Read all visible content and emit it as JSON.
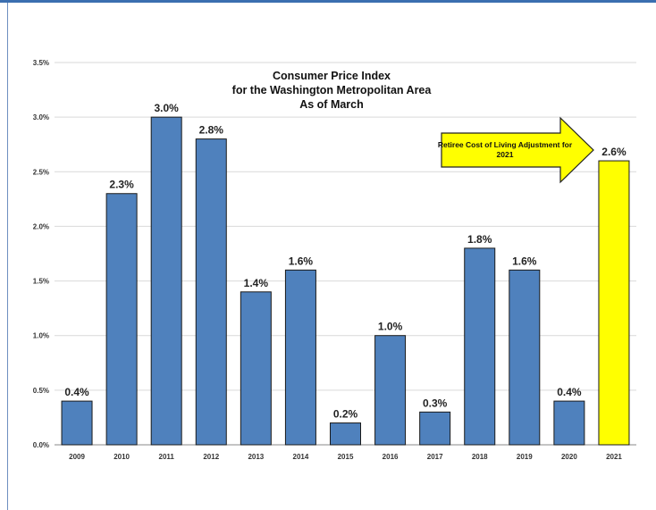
{
  "chart_data": {
    "type": "bar",
    "title_lines": [
      "Consumer Price Index",
      "for the Washington Metropolitan Area",
      "As of March"
    ],
    "categories": [
      "2009",
      "2010",
      "2011",
      "2012",
      "2013",
      "2014",
      "2015",
      "2016",
      "2017",
      "2018",
      "2019",
      "2020",
      "2021"
    ],
    "values": [
      0.4,
      2.3,
      3.0,
      2.8,
      1.4,
      1.6,
      0.2,
      1.0,
      0.3,
      1.8,
      1.6,
      0.4,
      2.6
    ],
    "value_labels": [
      "0.4%",
      "2.3%",
      "3.0%",
      "2.8%",
      "1.4%",
      "1.6%",
      "0.2%",
      "1.0%",
      "0.3%",
      "1.8%",
      "1.6%",
      "0.4%",
      "2.6%"
    ],
    "ylim": [
      0,
      3.5
    ],
    "yticks": [
      0.0,
      0.5,
      1.0,
      1.5,
      2.0,
      2.5,
      3.0,
      3.5
    ],
    "ytick_labels": [
      "0.0%",
      "0.5%",
      "1.0%",
      "1.5%",
      "2.0%",
      "2.5%",
      "3.0%",
      "3.5%"
    ],
    "grid": true,
    "colors": {
      "bar": "#4f81bd",
      "highlight": "#ffff00",
      "grid": "#d9d9d9"
    },
    "highlight_category": "2021",
    "annotation": {
      "lines": [
        "Retiree Cost of Living Adjustment for",
        "2021"
      ],
      "shape": "arrow-right",
      "fill": "#ffff00"
    }
  }
}
